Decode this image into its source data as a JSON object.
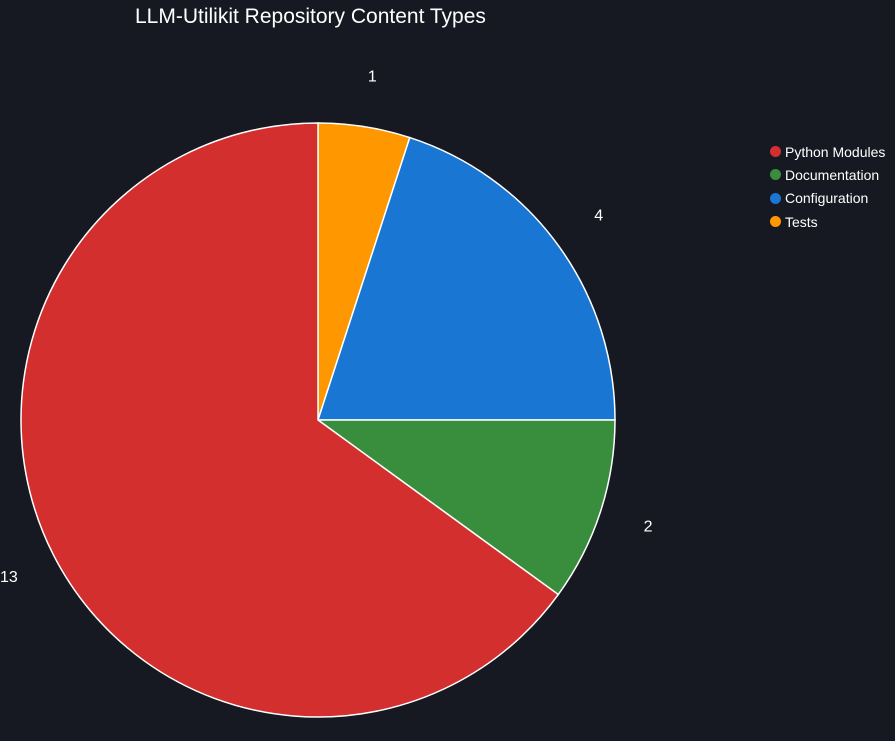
{
  "chart_data": {
    "type": "pie",
    "title": "LLM-Utilikit Repository Content Types",
    "categories": [
      "Python Modules",
      "Documentation",
      "Configuration",
      "Tests"
    ],
    "values": [
      13,
      2,
      4,
      1
    ],
    "colors": [
      "#d32f2f",
      "#388e3c",
      "#1976d2",
      "#ff9800"
    ],
    "legend_position": "top-right",
    "slice_border_color": "#ffffff"
  }
}
